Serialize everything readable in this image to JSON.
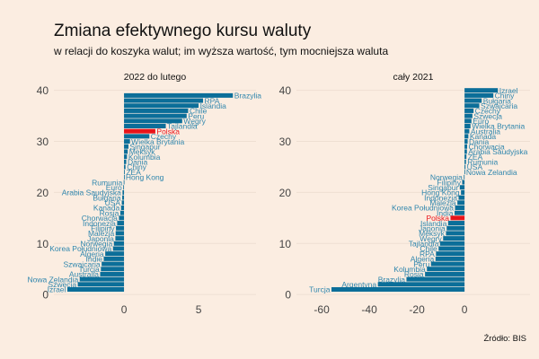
{
  "title": "Zmiana efektywnego kursu waluty",
  "subtitle": "w relacji do koszyka walut; im wyższa wartość, tym mocniejsza waluta",
  "source": "Źródło: BIS",
  "colors": {
    "bar": "#0b6e99",
    "highlight": "#e8141a",
    "label": "#2f86ad",
    "background": "#fbede1",
    "grid": "#eedfd2"
  },
  "chart_data": [
    {
      "type": "bar",
      "orientation": "horizontal",
      "title": "2022 do lutego",
      "highlight": "Polska",
      "xlim": [
        -4.7,
        8.85
      ],
      "ylim": [
        -1.2,
        41
      ],
      "xticks": [
        0,
        5
      ],
      "yticks": [
        0,
        10,
        20,
        30,
        40
      ],
      "grid": "horizontal",
      "categories": [
        "Brazylia",
        "RPA",
        "Islandia",
        "Chile",
        "Peru",
        "Węgry",
        "Tajlandia",
        "Polska",
        "Czechy",
        "Wielka Brytania",
        "Singapur",
        "Meksyk",
        "Kolumbia",
        "Dania",
        "Chiny",
        "ZEA",
        "Hong Kong",
        "Rumunia",
        "Euro",
        "Arabia Saudyjska",
        "Bułgaria",
        "USA",
        "Kanada",
        "Rosja",
        "Chorwacja",
        "Indonezja",
        "Filipiny",
        "Malezja",
        "Japonia",
        "Norwegia",
        "Korea Południowa",
        "Algeria",
        "Indie",
        "Szwajcaria",
        "Turcja",
        "Australia",
        "Nowa Zelandia",
        "Szwecja",
        "Izrael"
      ],
      "ranks": [
        39,
        38,
        37,
        36,
        35,
        34,
        33,
        32,
        31,
        30,
        29,
        28,
        27,
        26,
        25,
        24,
        23,
        22,
        21,
        20,
        19,
        18,
        17,
        16,
        15,
        14,
        13,
        12,
        11,
        10,
        9,
        8,
        7,
        6,
        5,
        4,
        3,
        2,
        1
      ],
      "values": [
        7.3,
        5.3,
        5.0,
        4.3,
        4.2,
        3.9,
        2.8,
        2.1,
        1.7,
        0.4,
        0.3,
        0.25,
        0.2,
        0.15,
        0.1,
        0.05,
        0.02,
        -0.02,
        -0.05,
        -0.1,
        -0.12,
        -0.15,
        -0.2,
        -0.25,
        -0.34,
        -0.46,
        -0.54,
        -0.56,
        -0.58,
        -0.68,
        -0.74,
        -1.26,
        -1.36,
        -1.5,
        -1.55,
        -1.6,
        -2.97,
        -3.1,
        -3.8
      ]
    },
    {
      "type": "bar",
      "orientation": "horizontal",
      "title": "cały 2021",
      "highlight": "Polska",
      "xlim": [
        -70.6,
        27.5
      ],
      "ylim": [
        -1.2,
        41
      ],
      "xticks": [
        -60,
        -40,
        -20,
        0
      ],
      "yticks": [
        0,
        10,
        20,
        30,
        40
      ],
      "grid": "horizontal",
      "categories": [
        "Izrael",
        "Chiny",
        "Bułgaria",
        "Szwajcaria",
        "Czechy",
        "Szwecja",
        "Euro",
        "Wielka Brytania",
        "Australia",
        "Kanada",
        "Dania",
        "Chorwacja",
        "Arabia Saudyjska",
        "ZEA",
        "Rumunia",
        "USA",
        "Nowa Zelandia",
        "Norwegia",
        "Filipiny",
        "Singapur",
        "Hong Kong",
        "Indonezja",
        "Malezja",
        "Korea Południowa",
        "India",
        "Polska",
        "Islandia",
        "Japonia",
        "Meksyk",
        "Węgry",
        "Tajlandia",
        "Chile",
        "RPA",
        "Algeria",
        "Peru",
        "Kolumbia",
        "Rosja",
        "Brazylia",
        "Argentyna",
        "Turcja"
      ],
      "ranks": [
        40,
        39,
        38,
        37,
        36,
        35,
        34,
        33,
        32,
        31,
        30,
        29,
        28,
        27,
        26,
        25,
        24,
        23,
        22,
        21,
        20,
        19,
        18,
        17,
        16,
        15,
        14,
        13,
        12,
        11,
        10,
        9,
        8,
        7,
        6,
        5,
        4,
        3,
        2,
        1
      ],
      "values": [
        14,
        12.1,
        7.2,
        6.2,
        3.8,
        3.3,
        2.9,
        2.5,
        2,
        1.6,
        1.3,
        1.1,
        1,
        0.8,
        0.6,
        0.4,
        0.1,
        -0.3,
        -1,
        -2,
        -1.5,
        -2.5,
        -3,
        -4,
        -4.2,
        -5.9,
        -6.9,
        -7.5,
        -7.8,
        -9,
        -10.3,
        -10.9,
        -12,
        -12.2,
        -14.1,
        -15.8,
        -16.6,
        -24.4,
        -36.4,
        -55.9
      ]
    }
  ]
}
